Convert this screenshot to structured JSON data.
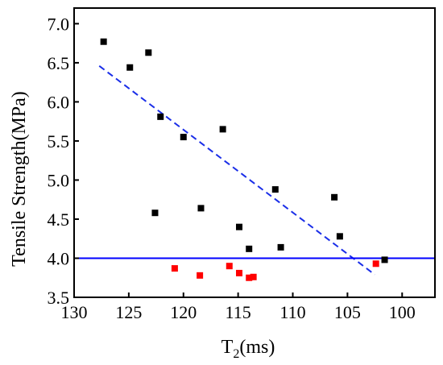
{
  "chart_data": {
    "type": "scatter",
    "xlabel": "T",
    "xlabel_sub": "2",
    "xlabel_unit": "(ms)",
    "ylabel": "Tensile Strength(MPa)",
    "xlim": [
      130,
      97
    ],
    "ylim": [
      3.5,
      7.2
    ],
    "x_ticks": [
      130,
      125,
      120,
      115,
      110,
      105,
      100
    ],
    "y_ticks": [
      3.5,
      4.0,
      4.5,
      5.0,
      5.5,
      6.0,
      6.5,
      7.0
    ],
    "x_tick_labels": [
      "130",
      "125",
      "120",
      "115",
      "110",
      "105",
      "100"
    ],
    "y_tick_labels": [
      "3.5",
      "4.0",
      "4.5",
      "5.0",
      "5.5",
      "6.0",
      "6.5",
      "7.0"
    ],
    "x_axis_reversed": true,
    "grid": false,
    "series": [
      {
        "color": "#000000",
        "marker": "square",
        "points": [
          {
            "x": 127.3,
            "y": 6.77
          },
          {
            "x": 124.9,
            "y": 6.44
          },
          {
            "x": 123.2,
            "y": 6.63
          },
          {
            "x": 122.1,
            "y": 5.81
          },
          {
            "x": 120.0,
            "y": 5.55
          },
          {
            "x": 122.6,
            "y": 4.58
          },
          {
            "x": 118.4,
            "y": 4.64
          },
          {
            "x": 116.4,
            "y": 5.65
          },
          {
            "x": 114.9,
            "y": 4.4
          },
          {
            "x": 114.0,
            "y": 4.12
          },
          {
            "x": 111.6,
            "y": 4.88
          },
          {
            "x": 111.1,
            "y": 4.14
          },
          {
            "x": 106.2,
            "y": 4.78
          },
          {
            "x": 105.7,
            "y": 4.28
          },
          {
            "x": 101.6,
            "y": 3.98
          }
        ]
      },
      {
        "color": "#ff0000",
        "marker": "square",
        "points": [
          {
            "x": 120.8,
            "y": 3.87
          },
          {
            "x": 118.5,
            "y": 3.78
          },
          {
            "x": 115.8,
            "y": 3.9
          },
          {
            "x": 114.9,
            "y": 3.81
          },
          {
            "x": 114.0,
            "y": 3.75
          },
          {
            "x": 113.6,
            "y": 3.76
          },
          {
            "x": 102.4,
            "y": 3.93
          }
        ]
      }
    ],
    "reference_lines": [
      {
        "kind": "fit",
        "style": "dashed",
        "color": "#1a2ee8",
        "from": {
          "x": 127.7,
          "y": 6.46
        },
        "to": {
          "x": 102.5,
          "y": 3.79
        }
      },
      {
        "kind": "threshold",
        "style": "solid",
        "color": "#0000ff",
        "y": 4.0
      }
    ]
  }
}
